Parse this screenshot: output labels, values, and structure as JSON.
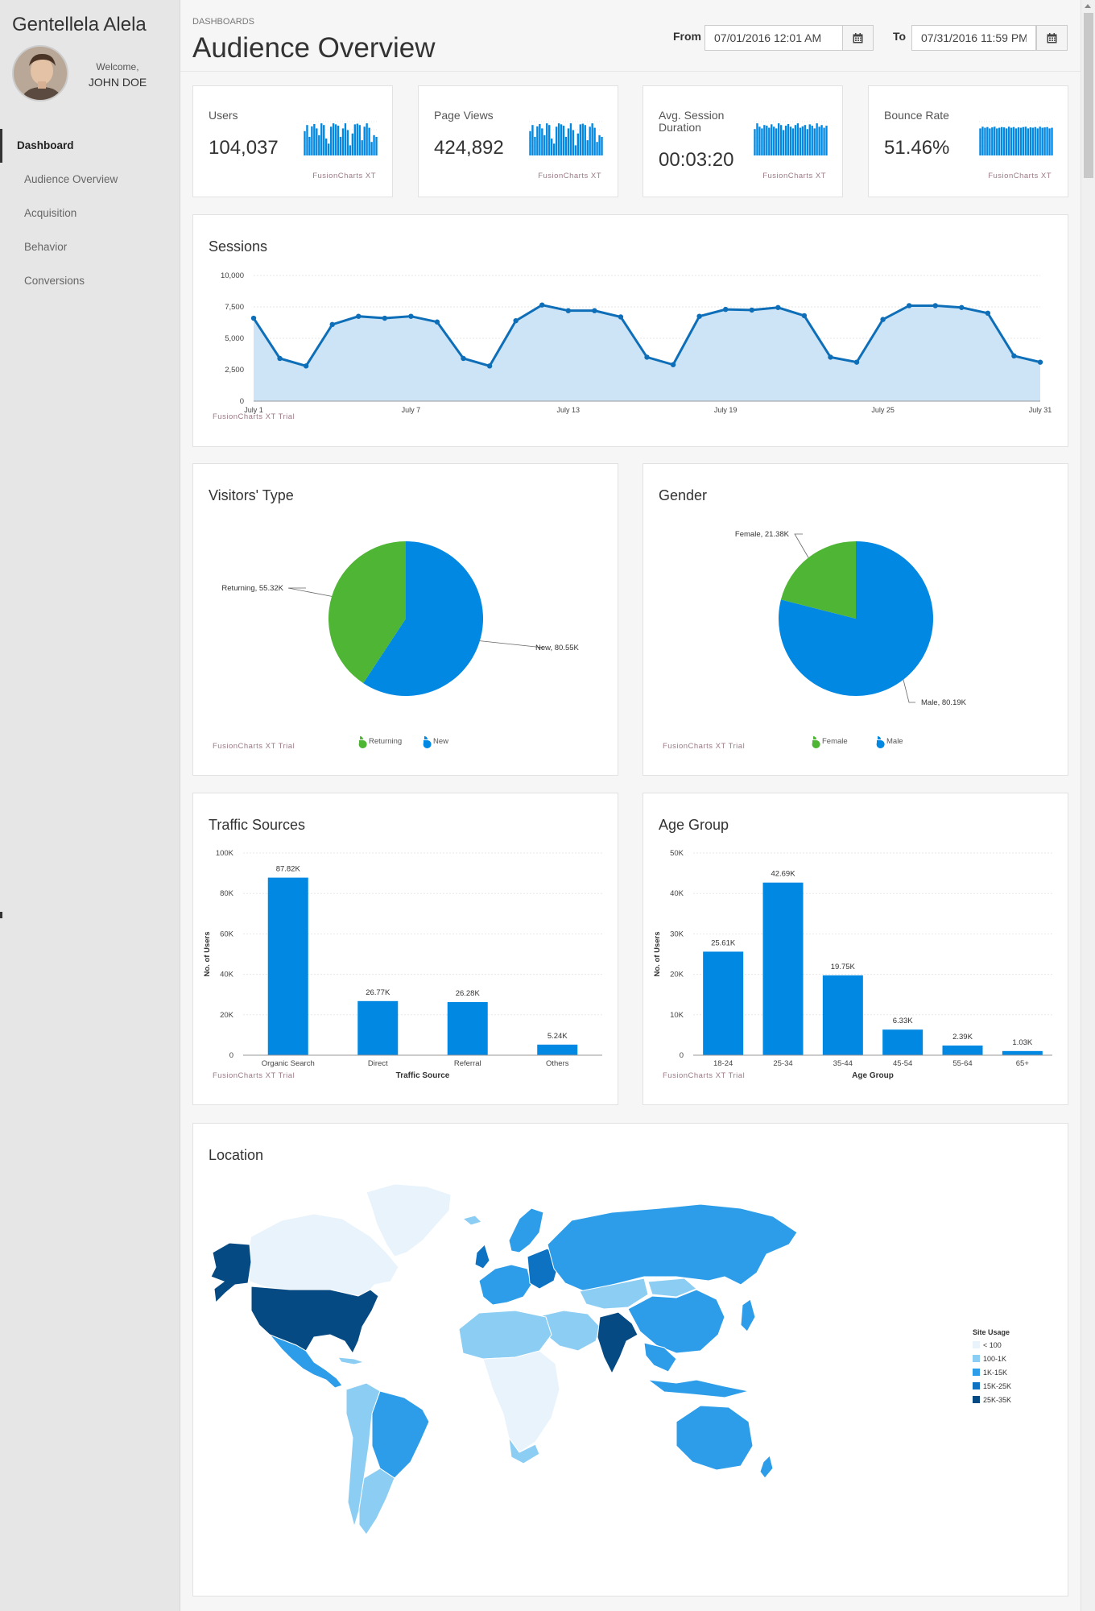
{
  "sidebar": {
    "brand": "Gentellela Alela",
    "welcome": "Welcome,",
    "user": "JOHN DOE",
    "items": [
      {
        "label": "Dashboard",
        "active": true
      },
      {
        "label": "Audience Overview",
        "active": false
      },
      {
        "label": "Acquisition",
        "active": false
      },
      {
        "label": "Behavior",
        "active": false
      },
      {
        "label": "Conversions",
        "active": false
      }
    ]
  },
  "header": {
    "breadcrumb": "DASHBOARDS",
    "title": "Audience Overview",
    "from_label": "From",
    "from_value": "07/01/2016 12:01 AM",
    "to_label": "To",
    "to_value": "07/31/2016 11:59 PM"
  },
  "kpis": [
    {
      "label": "Users",
      "value": "104,037",
      "watermark": "FusionCharts XT",
      "spark": [
        0.72,
        0.9,
        0.55,
        0.86,
        0.93,
        0.8,
        0.6,
        0.95,
        0.9,
        0.5,
        0.35,
        0.85,
        0.95,
        0.92,
        0.88,
        0.55,
        0.8,
        0.95,
        0.75,
        0.3,
        0.65,
        0.92,
        0.94,
        0.9,
        0.45,
        0.85,
        0.95,
        0.82,
        0.4,
        0.6,
        0.55
      ]
    },
    {
      "label": "Page Views",
      "value": "424,892",
      "watermark": "FusionCharts XT",
      "spark": [
        0.72,
        0.9,
        0.55,
        0.86,
        0.93,
        0.8,
        0.6,
        0.95,
        0.9,
        0.5,
        0.35,
        0.85,
        0.95,
        0.92,
        0.88,
        0.55,
        0.8,
        0.95,
        0.75,
        0.3,
        0.65,
        0.92,
        0.94,
        0.9,
        0.45,
        0.85,
        0.95,
        0.82,
        0.4,
        0.6,
        0.55
      ]
    },
    {
      "label": "Avg. Session Duration",
      "value": "00:03:20",
      "watermark": "FusionCharts XT",
      "spark": [
        0.78,
        0.95,
        0.85,
        0.8,
        0.9,
        0.88,
        0.82,
        0.92,
        0.85,
        0.8,
        0.95,
        0.9,
        0.75,
        0.88,
        0.93,
        0.85,
        0.8,
        0.9,
        0.95,
        0.82,
        0.86,
        0.9,
        0.78,
        0.92,
        0.88,
        0.8,
        0.95,
        0.85,
        0.9,
        0.82,
        0.88
      ]
    },
    {
      "label": "Bounce Rate",
      "value": "51.46%",
      "watermark": "FusionCharts XT",
      "spark": [
        0.8,
        0.85,
        0.82,
        0.84,
        0.8,
        0.83,
        0.85,
        0.8,
        0.82,
        0.84,
        0.83,
        0.8,
        0.85,
        0.82,
        0.84,
        0.8,
        0.83,
        0.82,
        0.84,
        0.85,
        0.8,
        0.83,
        0.82,
        0.84,
        0.8,
        0.85,
        0.82,
        0.83,
        0.84,
        0.8,
        0.82
      ]
    }
  ],
  "colors": {
    "blue": "#0188e2",
    "green": "#4fb535",
    "line": "#0e6fb8",
    "area": "#cce4f6"
  },
  "sessions": {
    "title": "Sessions",
    "watermark": "FusionCharts XT Trial",
    "chart_data": {
      "type": "area",
      "x_tick_labels": [
        "July 1",
        "July 7",
        "July 13",
        "July 19",
        "July 25",
        "July 31"
      ],
      "y_tick_labels": [
        "0",
        "2,500",
        "5,000",
        "7,500",
        "10,000"
      ],
      "ylim": [
        0,
        10000
      ],
      "values": [
        6600,
        3400,
        2800,
        6100,
        6750,
        6600,
        6750,
        6300,
        3400,
        2800,
        6400,
        7650,
        7200,
        7200,
        6700,
        3500,
        2900,
        6750,
        7300,
        7250,
        7450,
        6800,
        3500,
        3100,
        6500,
        7600,
        7600,
        7450,
        7000,
        3600,
        3100
      ]
    }
  },
  "visitors": {
    "title": "Visitors' Type",
    "watermark": "FusionCharts XT Trial",
    "chart_data": {
      "type": "pie",
      "slices": [
        {
          "name": "New",
          "value": 80.55,
          "label": "New, 80.55K",
          "color": "#0188e2"
        },
        {
          "name": "Returning",
          "value": 55.32,
          "label": "Returning, 55.32K",
          "color": "#4fb535"
        }
      ],
      "legend": [
        "Returning",
        "New"
      ]
    }
  },
  "gender": {
    "title": "Gender",
    "watermark": "FusionCharts XT Trial",
    "chart_data": {
      "type": "pie",
      "slices": [
        {
          "name": "Male",
          "value": 80.19,
          "label": "Male, 80.19K",
          "color": "#0188e2"
        },
        {
          "name": "Female",
          "value": 21.38,
          "label": "Female, 21.38K",
          "color": "#4fb535"
        }
      ],
      "legend": [
        "Female",
        "Male"
      ]
    }
  },
  "traffic": {
    "title": "Traffic Sources",
    "watermark": "FusionCharts XT Trial",
    "chart_data": {
      "type": "bar",
      "categories": [
        "Organic Search",
        "Direct",
        "Referral",
        "Others"
      ],
      "values": [
        87.82,
        26.77,
        26.28,
        5.24
      ],
      "value_labels": [
        "87.82K",
        "26.77K",
        "26.28K",
        "5.24K"
      ],
      "xlabel": "Traffic Source",
      "ylabel": "No. of Users",
      "y_tick_labels": [
        "0",
        "20K",
        "40K",
        "60K",
        "80K",
        "100K"
      ],
      "ylim": [
        0,
        100
      ]
    }
  },
  "age": {
    "title": "Age Group",
    "watermark": "FusionCharts XT Trial",
    "chart_data": {
      "type": "bar",
      "categories": [
        "18-24",
        "25-34",
        "35-44",
        "45-54",
        "55-64",
        "65+"
      ],
      "values": [
        25.61,
        42.69,
        19.75,
        6.33,
        2.39,
        1.03
      ],
      "value_labels": [
        "25.61K",
        "42.69K",
        "19.75K",
        "6.33K",
        "2.39K",
        "1.03K"
      ],
      "xlabel": "Age Group",
      "ylabel": "No. of Users",
      "y_tick_labels": [
        "0",
        "10K",
        "20K",
        "30K",
        "40K",
        "50K"
      ],
      "ylim": [
        0,
        50
      ]
    }
  },
  "location": {
    "title": "Location",
    "legend_title": "Site Usage",
    "legend": [
      {
        "label": "< 100",
        "color": "#e8f3fc"
      },
      {
        "label": "100-1K",
        "color": "#8ccdf3"
      },
      {
        "label": "1K-15K",
        "color": "#2d9de9"
      },
      {
        "label": "15K-25K",
        "color": "#0e72c2"
      },
      {
        "label": "25K-35K",
        "color": "#054a83"
      }
    ]
  }
}
